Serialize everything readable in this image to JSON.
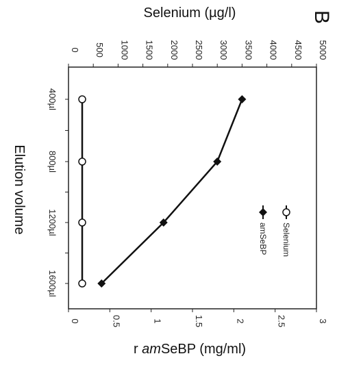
{
  "chart_data": {
    "type": "line",
    "panel_label": "B",
    "categories": [
      "400µl",
      "800µl",
      "1200µl",
      "1600µl"
    ],
    "xlabel": "Elution volume",
    "y_left": {
      "label_prefix": "r ",
      "label_italic": "am",
      "label_suffix": "SeBP (mg/ml)",
      "ticks": [
        "0",
        "0.5",
        "1",
        "1.5",
        "2",
        "2.5",
        "3"
      ],
      "ylim": [
        0,
        3
      ]
    },
    "y_right": {
      "label": "Selenium (µg/l)",
      "ticks": [
        "0",
        "500",
        "1000",
        "1500",
        "2000",
        "2500",
        "3000",
        "3500",
        "4000",
        "4500",
        "5000"
      ],
      "ylim": [
        0,
        5000
      ]
    },
    "series": [
      {
        "name": "Selenium",
        "axis": "right",
        "marker": "circle-open",
        "values": [
          0,
          0,
          0,
          0
        ]
      },
      {
        "name": "amSeBP",
        "axis": "left",
        "marker": "diamond-filled",
        "values": [
          2.1,
          1.8,
          1.15,
          0.4
        ]
      }
    ],
    "legend_position": "bottom-right"
  }
}
